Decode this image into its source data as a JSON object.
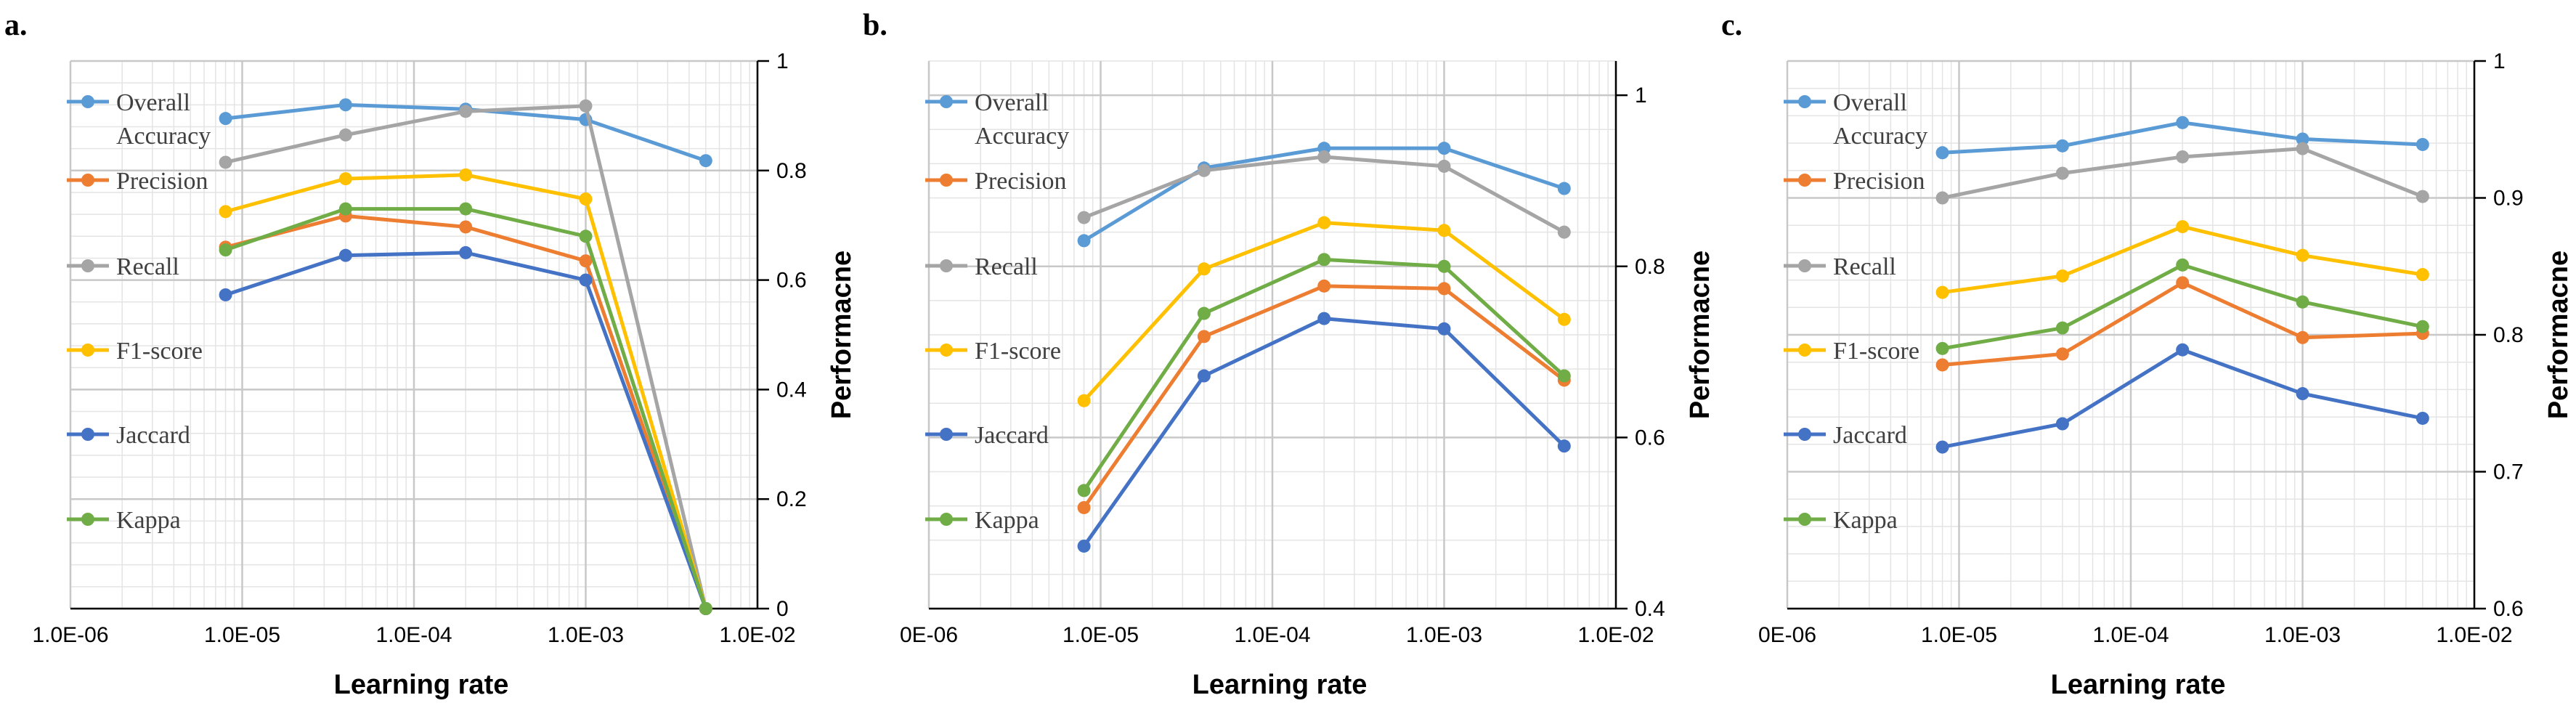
{
  "colors": {
    "Overall Accuracy": "#5b9bd5",
    "Precision": "#ed7d31",
    "Recall": "#a5a5a5",
    "F1-score": "#ffc000",
    "Jaccard": "#4472c4",
    "Kappa": "#70ad47"
  },
  "chart_data": [
    {
      "type": "line",
      "panel_label": "a.",
      "xscale": "log",
      "xlim": [
        1e-06,
        0.01
      ],
      "xticks": [
        "1.0E-06",
        "1.0E-05",
        "1.0E-04",
        "1.0E-03",
        "1.0E-02"
      ],
      "ylim": [
        0,
        1
      ],
      "yticks": [
        "0",
        "0.2",
        "0.4",
        "0.6",
        "0.8",
        "1"
      ],
      "xlabel": "Learning rate",
      "ylabel": "Performacne",
      "legend_position": "left",
      "x": [
        8e-06,
        4e-05,
        0.0002,
        0.001,
        0.005
      ],
      "series": [
        {
          "name": "Overall Accuracy",
          "legend_lines": [
            "Overall",
            "Accuracy"
          ],
          "values": [
            0.895,
            0.92,
            0.912,
            0.893,
            0.818
          ]
        },
        {
          "name": "Precision",
          "legend_lines": [
            "Precision"
          ],
          "values": [
            0.66,
            0.717,
            0.697,
            0.635,
            0
          ]
        },
        {
          "name": "Recall",
          "legend_lines": [
            "Recall"
          ],
          "values": [
            0.815,
            0.865,
            0.908,
            0.918,
            0
          ]
        },
        {
          "name": "F1-score",
          "legend_lines": [
            "F1-score"
          ],
          "values": [
            0.725,
            0.785,
            0.792,
            0.748,
            0
          ]
        },
        {
          "name": "Jaccard",
          "legend_lines": [
            "Jaccard"
          ],
          "values": [
            0.573,
            0.645,
            0.65,
            0.6,
            0
          ]
        },
        {
          "name": "Kappa",
          "legend_lines": [
            "Kappa"
          ],
          "values": [
            0.655,
            0.73,
            0.73,
            0.68,
            0
          ]
        }
      ]
    },
    {
      "type": "line",
      "panel_label": "b.",
      "xscale": "log",
      "xlim": [
        1e-06,
        0.01
      ],
      "xticks": [
        "0E-06",
        "1.0E-05",
        "1.0E-04",
        "1.0E-03",
        "1.0E-02"
      ],
      "ylim": [
        0.4,
        1.04
      ],
      "yticks": [
        "0.4",
        "0.6",
        "0.8",
        "1"
      ],
      "xlabel": "Learning rate",
      "ylabel": "Performacne",
      "legend_position": "left",
      "x": [
        8e-06,
        4e-05,
        0.0002,
        0.001,
        0.005
      ],
      "series": [
        {
          "name": "Overall Accuracy",
          "legend_lines": [
            "Overall",
            "Accuracy"
          ],
          "values": [
            0.83,
            0.915,
            0.938,
            0.938,
            0.891
          ]
        },
        {
          "name": "Precision",
          "legend_lines": [
            "Precision"
          ],
          "values": [
            0.518,
            0.718,
            0.777,
            0.774,
            0.667
          ]
        },
        {
          "name": "Recall",
          "legend_lines": [
            "Recall"
          ],
          "values": [
            0.857,
            0.912,
            0.928,
            0.917,
            0.84
          ]
        },
        {
          "name": "F1-score",
          "legend_lines": [
            "F1-score"
          ],
          "values": [
            0.643,
            0.797,
            0.851,
            0.842,
            0.738
          ]
        },
        {
          "name": "Jaccard",
          "legend_lines": [
            "Jaccard"
          ],
          "values": [
            0.473,
            0.672,
            0.739,
            0.727,
            0.59
          ]
        },
        {
          "name": "Kappa",
          "legend_lines": [
            "Kappa"
          ],
          "values": [
            0.538,
            0.745,
            0.808,
            0.8,
            0.672
          ]
        }
      ]
    },
    {
      "type": "line",
      "panel_label": "c.",
      "xscale": "log",
      "xlim": [
        1e-06,
        0.01
      ],
      "xticks": [
        "0E-06",
        "1.0E-05",
        "1.0E-04",
        "1.0E-03",
        "1.0E-02"
      ],
      "ylim": [
        0.6,
        1
      ],
      "yticks": [
        "0.6",
        "0.7",
        "0.8",
        "0.9",
        "1"
      ],
      "xlabel": "Learning rate",
      "ylabel": "Performacne",
      "legend_position": "left",
      "x": [
        8e-06,
        4e-05,
        0.0002,
        0.001,
        0.005
      ],
      "series": [
        {
          "name": "Overall Accuracy",
          "legend_lines": [
            "Overall",
            "Accuracy"
          ],
          "values": [
            0.933,
            0.938,
            0.955,
            0.943,
            0.939
          ]
        },
        {
          "name": "Precision",
          "legend_lines": [
            "Precision"
          ],
          "values": [
            0.778,
            0.786,
            0.838,
            0.798,
            0.801
          ]
        },
        {
          "name": "Recall",
          "legend_lines": [
            "Recall"
          ],
          "values": [
            0.9,
            0.918,
            0.93,
            0.936,
            0.901
          ]
        },
        {
          "name": "F1-score",
          "legend_lines": [
            "F1-score"
          ],
          "values": [
            0.831,
            0.843,
            0.879,
            0.858,
            0.844
          ]
        },
        {
          "name": "Jaccard",
          "legend_lines": [
            "Jaccard"
          ],
          "values": [
            0.718,
            0.735,
            0.789,
            0.757,
            0.739
          ]
        },
        {
          "name": "Kappa",
          "legend_lines": [
            "Kappa"
          ],
          "values": [
            0.79,
            0.805,
            0.851,
            0.824,
            0.806
          ]
        }
      ]
    }
  ]
}
